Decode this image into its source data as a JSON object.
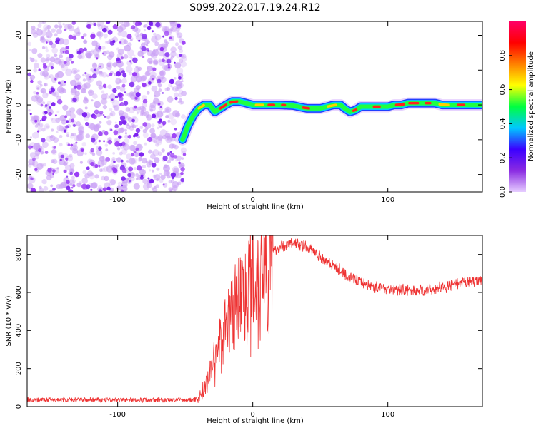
{
  "title": "S099.2022.017.19.24.R12",
  "chart_data": [
    {
      "type": "heatmap",
      "xlabel": "Height of straight line (km)",
      "ylabel": "Frequency (Hz)",
      "xlim": [
        -167,
        170
      ],
      "ylim": [
        -25,
        24
      ],
      "x_ticks": [
        -100,
        0,
        100
      ],
      "x_tick_labels": [
        "-100",
        "0",
        "100"
      ],
      "y_ticks": [
        -20,
        -10,
        0,
        10,
        20
      ],
      "y_tick_labels": [
        "-20",
        "-10",
        "0",
        "10",
        "20"
      ],
      "noise_region_x": [
        -167,
        -52
      ],
      "ridge": {
        "x": [
          -52,
          -48,
          -44,
          -40,
          -36,
          -32,
          -28,
          -24,
          -20,
          -15,
          -10,
          -5,
          0,
          10,
          20,
          30,
          40,
          50,
          55,
          60,
          65,
          68,
          72,
          76,
          80,
          85,
          90,
          95,
          100,
          105,
          110,
          115,
          120,
          125,
          130,
          135,
          140,
          150,
          160,
          170
        ],
        "freq": [
          -10,
          -6,
          -3,
          -1,
          0,
          0,
          -2,
          -1,
          0,
          1,
          1,
          0.5,
          0,
          0,
          0,
          -0.2,
          -1,
          -1,
          -0.5,
          0,
          0,
          -1,
          -2,
          -1.5,
          -0.5,
          -0.5,
          -0.5,
          -0.5,
          -0.5,
          0,
          0,
          0.5,
          0.5,
          0.5,
          0.5,
          0.5,
          0,
          0,
          0,
          0
        ]
      },
      "colorbar": {
        "label": "Normalized spectral amplitude",
        "range": [
          0,
          1
        ],
        "tick_labels": [
          "0.0",
          "0.2",
          "0.4",
          "0.6",
          "0.8"
        ],
        "tick_values": [
          0,
          0.2,
          0.4,
          0.6,
          0.8
        ],
        "colors": [
          "#e6ccff",
          "#8a2be2",
          "#3b00ff",
          "#00c8ff",
          "#00ff40",
          "#ffff00",
          "#ff8000",
          "#ff0000",
          "#ff0066"
        ]
      }
    },
    {
      "type": "line",
      "xlabel": "Height of straight line (km)",
      "ylabel": "SNR (10 * v/v)",
      "xlim": [
        -167,
        170
      ],
      "ylim": [
        0,
        900
      ],
      "x_ticks": [
        -100,
        0,
        100
      ],
      "x_tick_labels": [
        "-100",
        "0",
        "100"
      ],
      "y_ticks": [
        0,
        200,
        400,
        600,
        800
      ],
      "y_tick_labels": [
        "0",
        "200",
        "400",
        "600",
        "800"
      ],
      "color": "#ee3333",
      "envelope": {
        "x": [
          -167,
          -120,
          -80,
          -45,
          -40,
          -35,
          -30,
          -25,
          -20,
          -10,
          0,
          10,
          20,
          30,
          40,
          50,
          60,
          70,
          80,
          90,
          100,
          110,
          120,
          130,
          140,
          150,
          160,
          170
        ],
        "snr": [
          35,
          35,
          35,
          35,
          45,
          110,
          220,
          330,
          420,
          560,
          680,
          780,
          840,
          860,
          840,
          790,
          740,
          690,
          650,
          630,
          620,
          615,
          610,
          615,
          625,
          640,
          655,
          670
        ]
      }
    }
  ]
}
